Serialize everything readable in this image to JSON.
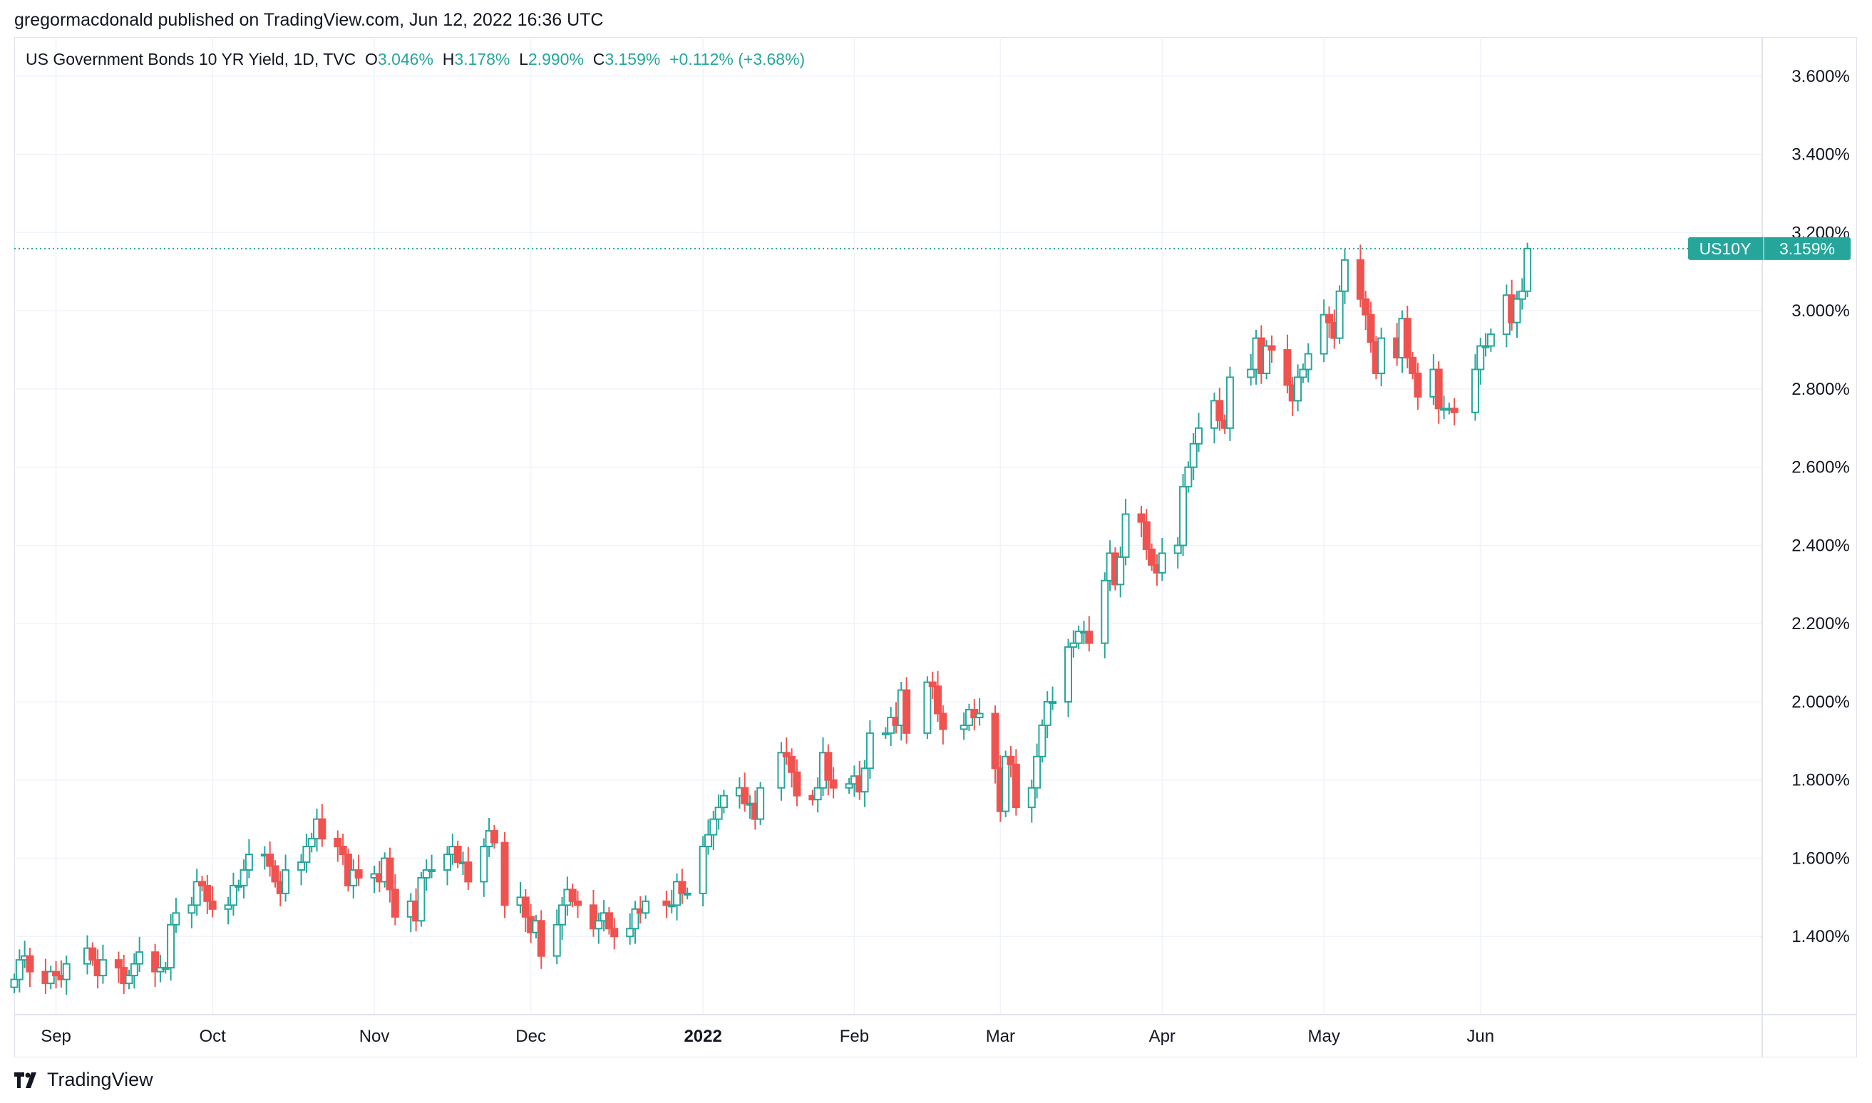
{
  "header": {
    "publisher": "gregormacdonald published on TradingView.com, Jun 12, 2022 16:36 UTC"
  },
  "legend": {
    "symbol": "US Government Bonds 10 YR Yield, 1D, TVC",
    "o_label": "O",
    "o_value": "3.046%",
    "h_label": "H",
    "h_value": "3.178%",
    "l_label": "L",
    "l_value": "2.990%",
    "c_label": "C",
    "c_value": "3.159%",
    "change": "+0.112% (+3.68%)"
  },
  "price_badge": {
    "symbol": "US10Y",
    "value": "3.159%"
  },
  "footer": {
    "brand": "TradingView"
  },
  "colors": {
    "up": "#26a69a",
    "down": "#ef5350",
    "grid": "#f0f3fa",
    "text": "#131722"
  },
  "chart_data": {
    "type": "candlestick",
    "y_axis": {
      "range": [
        1.2,
        3.7
      ],
      "ticks": [
        1.4,
        1.6,
        1.8,
        2.0,
        2.2,
        2.4,
        2.6,
        2.8,
        3.0,
        3.2,
        3.4,
        3.6
      ],
      "tick_labels": [
        "1.400%",
        "1.600%",
        "1.800%",
        "2.000%",
        "2.200%",
        "2.400%",
        "2.600%",
        "2.800%",
        "3.000%",
        "3.200%",
        "3.400%",
        "3.600%"
      ]
    },
    "x_axis": {
      "date_range": [
        "2021-08-24",
        "2022-07-25"
      ],
      "ticks": [
        {
          "date": "2021-09-01",
          "label": "Sep",
          "bold": false
        },
        {
          "date": "2021-10-01",
          "label": "Oct",
          "bold": false
        },
        {
          "date": "2021-11-01",
          "label": "Nov",
          "bold": false
        },
        {
          "date": "2021-12-01",
          "label": "Dec",
          "bold": false
        },
        {
          "date": "2022-01-03",
          "label": "2022",
          "bold": true
        },
        {
          "date": "2022-02-01",
          "label": "Feb",
          "bold": false
        },
        {
          "date": "2022-03-01",
          "label": "Mar",
          "bold": false
        },
        {
          "date": "2022-04-01",
          "label": "Apr",
          "bold": false
        },
        {
          "date": "2022-05-02",
          "label": "May",
          "bold": false
        },
        {
          "date": "2022-06-01",
          "label": "Jun",
          "bold": false
        }
      ]
    },
    "last_price": 3.159,
    "series": [
      {
        "d": "2021-08-24",
        "c": 1.29
      },
      {
        "d": "2021-08-25",
        "c": 1.34
      },
      {
        "d": "2021-08-26",
        "c": 1.35
      },
      {
        "d": "2021-08-27",
        "c": 1.31
      },
      {
        "d": "2021-08-30",
        "c": 1.28
      },
      {
        "d": "2021-08-31",
        "c": 1.31
      },
      {
        "d": "2021-09-01",
        "c": 1.3
      },
      {
        "d": "2021-09-02",
        "c": 1.29
      },
      {
        "d": "2021-09-03",
        "c": 1.33
      },
      {
        "d": "2021-09-07",
        "c": 1.37
      },
      {
        "d": "2021-09-08",
        "c": 1.34
      },
      {
        "d": "2021-09-09",
        "c": 1.3
      },
      {
        "d": "2021-09-10",
        "c": 1.34
      },
      {
        "d": "2021-09-13",
        "c": 1.32
      },
      {
        "d": "2021-09-14",
        "c": 1.28
      },
      {
        "d": "2021-09-15",
        "c": 1.3
      },
      {
        "d": "2021-09-16",
        "c": 1.33
      },
      {
        "d": "2021-09-17",
        "c": 1.36
      },
      {
        "d": "2021-09-20",
        "c": 1.31
      },
      {
        "d": "2021-09-21",
        "c": 1.32
      },
      {
        "d": "2021-09-22",
        "c": 1.32
      },
      {
        "d": "2021-09-23",
        "c": 1.43
      },
      {
        "d": "2021-09-24",
        "c": 1.46
      },
      {
        "d": "2021-09-27",
        "c": 1.48
      },
      {
        "d": "2021-09-28",
        "c": 1.54
      },
      {
        "d": "2021-09-29",
        "c": 1.53
      },
      {
        "d": "2021-09-30",
        "c": 1.49
      },
      {
        "d": "2021-10-01",
        "c": 1.47
      },
      {
        "d": "2021-10-04",
        "c": 1.48
      },
      {
        "d": "2021-10-05",
        "c": 1.53
      },
      {
        "d": "2021-10-06",
        "c": 1.53
      },
      {
        "d": "2021-10-07",
        "c": 1.57
      },
      {
        "d": "2021-10-08",
        "c": 1.61
      },
      {
        "d": "2021-10-11",
        "c": 1.61
      },
      {
        "d": "2021-10-12",
        "c": 1.58
      },
      {
        "d": "2021-10-13",
        "c": 1.54
      },
      {
        "d": "2021-10-14",
        "c": 1.51
      },
      {
        "d": "2021-10-15",
        "c": 1.57
      },
      {
        "d": "2021-10-18",
        "c": 1.59
      },
      {
        "d": "2021-10-19",
        "c": 1.63
      },
      {
        "d": "2021-10-20",
        "c": 1.65
      },
      {
        "d": "2021-10-21",
        "c": 1.7
      },
      {
        "d": "2021-10-22",
        "c": 1.65
      },
      {
        "d": "2021-10-25",
        "c": 1.63
      },
      {
        "d": "2021-10-26",
        "c": 1.61
      },
      {
        "d": "2021-10-27",
        "c": 1.53
      },
      {
        "d": "2021-10-28",
        "c": 1.57
      },
      {
        "d": "2021-10-29",
        "c": 1.55
      },
      {
        "d": "2021-11-01",
        "c": 1.56
      },
      {
        "d": "2021-11-02",
        "c": 1.54
      },
      {
        "d": "2021-11-03",
        "c": 1.6
      },
      {
        "d": "2021-11-04",
        "c": 1.52
      },
      {
        "d": "2021-11-05",
        "c": 1.45
      },
      {
        "d": "2021-11-08",
        "c": 1.49
      },
      {
        "d": "2021-11-09",
        "c": 1.44
      },
      {
        "d": "2021-11-10",
        "c": 1.55
      },
      {
        "d": "2021-11-11",
        "c": 1.57
      },
      {
        "d": "2021-11-12",
        "c": 1.57
      },
      {
        "d": "2021-11-15",
        "c": 1.61
      },
      {
        "d": "2021-11-16",
        "c": 1.63
      },
      {
        "d": "2021-11-17",
        "c": 1.59
      },
      {
        "d": "2021-11-18",
        "c": 1.59
      },
      {
        "d": "2021-11-19",
        "c": 1.54
      },
      {
        "d": "2021-11-22",
        "c": 1.63
      },
      {
        "d": "2021-11-23",
        "c": 1.67
      },
      {
        "d": "2021-11-24",
        "c": 1.64
      },
      {
        "d": "2021-11-26",
        "c": 1.48
      },
      {
        "d": "2021-11-29",
        "c": 1.5
      },
      {
        "d": "2021-11-30",
        "c": 1.45
      },
      {
        "d": "2021-12-01",
        "c": 1.41
      },
      {
        "d": "2021-12-02",
        "c": 1.44
      },
      {
        "d": "2021-12-03",
        "c": 1.35
      },
      {
        "d": "2021-12-06",
        "c": 1.43
      },
      {
        "d": "2021-12-07",
        "c": 1.48
      },
      {
        "d": "2021-12-08",
        "c": 1.52
      },
      {
        "d": "2021-12-09",
        "c": 1.49
      },
      {
        "d": "2021-12-10",
        "c": 1.48
      },
      {
        "d": "2021-12-13",
        "c": 1.42
      },
      {
        "d": "2021-12-14",
        "c": 1.44
      },
      {
        "d": "2021-12-15",
        "c": 1.46
      },
      {
        "d": "2021-12-16",
        "c": 1.42
      },
      {
        "d": "2021-12-17",
        "c": 1.4
      },
      {
        "d": "2021-12-20",
        "c": 1.42
      },
      {
        "d": "2021-12-21",
        "c": 1.47
      },
      {
        "d": "2021-12-22",
        "c": 1.46
      },
      {
        "d": "2021-12-23",
        "c": 1.49
      },
      {
        "d": "2021-12-27",
        "c": 1.48
      },
      {
        "d": "2021-12-28",
        "c": 1.48
      },
      {
        "d": "2021-12-29",
        "c": 1.54
      },
      {
        "d": "2021-12-30",
        "c": 1.51
      },
      {
        "d": "2021-12-31",
        "c": 1.51
      },
      {
        "d": "2022-01-03",
        "c": 1.63
      },
      {
        "d": "2022-01-04",
        "c": 1.66
      },
      {
        "d": "2022-01-05",
        "c": 1.7
      },
      {
        "d": "2022-01-06",
        "c": 1.73
      },
      {
        "d": "2022-01-07",
        "c": 1.76
      },
      {
        "d": "2022-01-10",
        "c": 1.78
      },
      {
        "d": "2022-01-11",
        "c": 1.74
      },
      {
        "d": "2022-01-12",
        "c": 1.74
      },
      {
        "d": "2022-01-13",
        "c": 1.7
      },
      {
        "d": "2022-01-14",
        "c": 1.78
      },
      {
        "d": "2022-01-18",
        "c": 1.87
      },
      {
        "d": "2022-01-19",
        "c": 1.86
      },
      {
        "d": "2022-01-20",
        "c": 1.82
      },
      {
        "d": "2022-01-21",
        "c": 1.76
      },
      {
        "d": "2022-01-24",
        "c": 1.75
      },
      {
        "d": "2022-01-25",
        "c": 1.78
      },
      {
        "d": "2022-01-26",
        "c": 1.87
      },
      {
        "d": "2022-01-27",
        "c": 1.8
      },
      {
        "d": "2022-01-28",
        "c": 1.78
      },
      {
        "d": "2022-01-31",
        "c": 1.79
      },
      {
        "d": "2022-02-01",
        "c": 1.81
      },
      {
        "d": "2022-02-02",
        "c": 1.77
      },
      {
        "d": "2022-02-03",
        "c": 1.83
      },
      {
        "d": "2022-02-04",
        "c": 1.92
      },
      {
        "d": "2022-02-07",
        "c": 1.92
      },
      {
        "d": "2022-02-08",
        "c": 1.96
      },
      {
        "d": "2022-02-09",
        "c": 1.94
      },
      {
        "d": "2022-02-10",
        "c": 2.03
      },
      {
        "d": "2022-02-11",
        "c": 1.92
      },
      {
        "d": "2022-02-15",
        "c": 2.05
      },
      {
        "d": "2022-02-16",
        "c": 2.04
      },
      {
        "d": "2022-02-17",
        "c": 1.97
      },
      {
        "d": "2022-02-18",
        "c": 1.93
      },
      {
        "d": "2022-02-22",
        "c": 1.94
      },
      {
        "d": "2022-02-23",
        "c": 1.98
      },
      {
        "d": "2022-02-24",
        "c": 1.96
      },
      {
        "d": "2022-02-25",
        "c": 1.97
      },
      {
        "d": "2022-02-28",
        "c": 1.83
      },
      {
        "d": "2022-03-01",
        "c": 1.72
      },
      {
        "d": "2022-03-02",
        "c": 1.86
      },
      {
        "d": "2022-03-03",
        "c": 1.84
      },
      {
        "d": "2022-03-04",
        "c": 1.73
      },
      {
        "d": "2022-03-07",
        "c": 1.78
      },
      {
        "d": "2022-03-08",
        "c": 1.86
      },
      {
        "d": "2022-03-09",
        "c": 1.94
      },
      {
        "d": "2022-03-10",
        "c": 2.0
      },
      {
        "d": "2022-03-11",
        "c": 2.0
      },
      {
        "d": "2022-03-14",
        "c": 2.14
      },
      {
        "d": "2022-03-15",
        "c": 2.15
      },
      {
        "d": "2022-03-16",
        "c": 2.18
      },
      {
        "d": "2022-03-17",
        "c": 2.18
      },
      {
        "d": "2022-03-18",
        "c": 2.15
      },
      {
        "d": "2022-03-21",
        "c": 2.31
      },
      {
        "d": "2022-03-22",
        "c": 2.38
      },
      {
        "d": "2022-03-23",
        "c": 2.3
      },
      {
        "d": "2022-03-24",
        "c": 2.37
      },
      {
        "d": "2022-03-25",
        "c": 2.48
      },
      {
        "d": "2022-03-28",
        "c": 2.46
      },
      {
        "d": "2022-03-29",
        "c": 2.39
      },
      {
        "d": "2022-03-30",
        "c": 2.35
      },
      {
        "d": "2022-03-31",
        "c": 2.33
      },
      {
        "d": "2022-04-01",
        "c": 2.38
      },
      {
        "d": "2022-04-04",
        "c": 2.4
      },
      {
        "d": "2022-04-05",
        "c": 2.55
      },
      {
        "d": "2022-04-06",
        "c": 2.6
      },
      {
        "d": "2022-04-07",
        "c": 2.66
      },
      {
        "d": "2022-04-08",
        "c": 2.7
      },
      {
        "d": "2022-04-11",
        "c": 2.77
      },
      {
        "d": "2022-04-12",
        "c": 2.72
      },
      {
        "d": "2022-04-13",
        "c": 2.7
      },
      {
        "d": "2022-04-14",
        "c": 2.83
      },
      {
        "d": "2022-04-18",
        "c": 2.85
      },
      {
        "d": "2022-04-19",
        "c": 2.93
      },
      {
        "d": "2022-04-20",
        "c": 2.84
      },
      {
        "d": "2022-04-21",
        "c": 2.91
      },
      {
        "d": "2022-04-22",
        "c": 2.9
      },
      {
        "d": "2022-04-25",
        "c": 2.81
      },
      {
        "d": "2022-04-26",
        "c": 2.77
      },
      {
        "d": "2022-04-27",
        "c": 2.83
      },
      {
        "d": "2022-04-28",
        "c": 2.85
      },
      {
        "d": "2022-04-29",
        "c": 2.89
      },
      {
        "d": "2022-05-02",
        "c": 2.99
      },
      {
        "d": "2022-05-03",
        "c": 2.97
      },
      {
        "d": "2022-05-04",
        "c": 2.93
      },
      {
        "d": "2022-05-05",
        "c": 3.05
      },
      {
        "d": "2022-05-06",
        "c": 3.13
      },
      {
        "d": "2022-05-09",
        "c": 3.03
      },
      {
        "d": "2022-05-10",
        "c": 2.99
      },
      {
        "d": "2022-05-11",
        "c": 2.92
      },
      {
        "d": "2022-05-12",
        "c": 2.84
      },
      {
        "d": "2022-05-13",
        "c": 2.93
      },
      {
        "d": "2022-05-16",
        "c": 2.88
      },
      {
        "d": "2022-05-17",
        "c": 2.98
      },
      {
        "d": "2022-05-18",
        "c": 2.88
      },
      {
        "d": "2022-05-19",
        "c": 2.84
      },
      {
        "d": "2022-05-20",
        "c": 2.78
      },
      {
        "d": "2022-05-23",
        "c": 2.85
      },
      {
        "d": "2022-05-24",
        "c": 2.75
      },
      {
        "d": "2022-05-25",
        "c": 2.75
      },
      {
        "d": "2022-05-26",
        "c": 2.75
      },
      {
        "d": "2022-05-27",
        "c": 2.74
      },
      {
        "d": "2022-05-31",
        "c": 2.85
      },
      {
        "d": "2022-06-01",
        "c": 2.91
      },
      {
        "d": "2022-06-02",
        "c": 2.91
      },
      {
        "d": "2022-06-03",
        "c": 2.94
      },
      {
        "d": "2022-06-06",
        "c": 3.04
      },
      {
        "d": "2022-06-07",
        "c": 2.97
      },
      {
        "d": "2022-06-08",
        "c": 3.03
      },
      {
        "d": "2022-06-09",
        "c": 3.05
      },
      {
        "d": "2022-06-10",
        "c": 3.159
      }
    ]
  }
}
